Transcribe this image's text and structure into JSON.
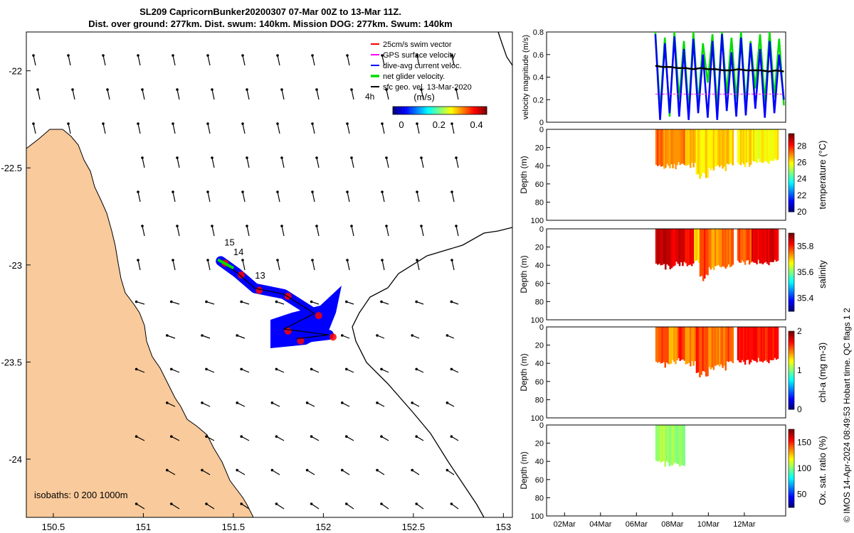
{
  "title": {
    "line1": "SL209 CapricornBunker20200307 07-Mar 00Z to 13-Mar 11Z.",
    "line2": "Dist. over ground: 277km. Dist. swum: 140km. Mission DOG: 277km. Swum: 140km"
  },
  "credit": "© IMOS 14-Apr-2024 08:49:53 Hobart time. QC flags 1  2",
  "colors": {
    "land": "#f9ca9c",
    "swim_vector": "#ff0000",
    "gps_velocity": "#ff00ff",
    "dive_avg_current": "#0000ff",
    "net_glider": "#00dd00",
    "sfc_geo_vel": "#000000"
  },
  "chart_data": [
    {
      "type": "map",
      "xlim": [
        150.35,
        153.05
      ],
      "ylim": [
        -24.3,
        -21.8
      ],
      "xticks": [
        "150.5",
        "151",
        "151.5",
        "152",
        "152.5",
        "153"
      ],
      "yticks": [
        "-22",
        "-22.5",
        "-23",
        "-23.5",
        "-24"
      ],
      "legend": {
        "placement": "top-right",
        "items": [
          {
            "label": "25cm/s swim vector",
            "color": "#ff0000"
          },
          {
            "label": "GPS surface velocity",
            "color": "#ff00ff"
          },
          {
            "label": "dive-avg current veloc.",
            "color": "#0000ff"
          },
          {
            "label": "net glider velocity.",
            "color": "#00dd00"
          },
          {
            "label": "sfc geo. vel. 13-Mar-2020",
            "color": "#000000"
          }
        ]
      },
      "colorbar": {
        "label": "(m/s)",
        "ticks": [
          "0",
          "0.2",
          "0.4"
        ],
        "range": [
          0,
          0.5
        ],
        "colormap": "jet"
      },
      "interval_label": "4h",
      "isobaths_label": "isobaths: 0   200  1000m",
      "day_labels": [
        {
          "text": "15",
          "lon": 151.45,
          "lat": -22.9
        },
        {
          "text": "14",
          "lon": 151.5,
          "lat": -22.95
        },
        {
          "text": "13",
          "lon": 151.62,
          "lat": -23.07
        }
      ],
      "glider_track": [
        {
          "lon": 151.43,
          "lat": -22.98
        },
        {
          "lon": 151.52,
          "lat": -23.04
        },
        {
          "lon": 151.62,
          "lat": -23.12
        },
        {
          "lon": 151.78,
          "lat": -23.15
        },
        {
          "lon": 151.95,
          "lat": -23.25
        },
        {
          "lon": 151.78,
          "lat": -23.33
        },
        {
          "lon": 152.03,
          "lat": -23.36
        },
        {
          "lon": 151.85,
          "lat": -23.38
        }
      ]
    },
    {
      "type": "line",
      "ylabel": "velocity magnitude (m/s)",
      "ylim": [
        0,
        0.8
      ],
      "yticks": [
        "0",
        "0.2",
        "0.4",
        "0.6",
        "0.8"
      ],
      "xlim": [
        1,
        14.3
      ],
      "series": [
        {
          "color": "#00dd00",
          "values": [
            0.8,
            0.1,
            0.75,
            0.05,
            0.8,
            0.2,
            0.72,
            0.1,
            0.8,
            0.15,
            0.7,
            0.35,
            0.78,
            0.12,
            0.8,
            0.25,
            0.75,
            0.2,
            0.8,
            0.15,
            0.72,
            0.3,
            0.78,
            0.18,
            0.8,
            0.22,
            0.74,
            0.15
          ]
        },
        {
          "color": "#0000ff",
          "values": [
            0.78,
            0.02,
            0.7,
            0.08,
            0.76,
            0.05,
            0.65,
            0.02,
            0.74,
            0.08,
            0.6,
            0.04,
            0.72,
            0.02,
            0.78,
            0.1,
            0.62,
            0.05,
            0.75,
            0.06,
            0.7,
            0.12,
            0.65,
            0.04,
            0.72,
            0.08,
            0.6,
            0.2
          ]
        },
        {
          "color": "#000000",
          "values": [
            0.5,
            0.49,
            0.49,
            0.48,
            0.48,
            0.47,
            0.48,
            0.47,
            0.47,
            0.46,
            0.46,
            0.47,
            0.46,
            0.46,
            0.46,
            0.45,
            0.46,
            0.45
          ]
        },
        {
          "color": "#ff00ff",
          "values": [
            0.25,
            0.25
          ]
        }
      ]
    },
    {
      "type": "heatmap",
      "ylabel": "Depth (m)",
      "colorbar_label": "temperature (°C)",
      "cbar_ticks": [
        "20",
        "22",
        "24",
        "26",
        "28"
      ],
      "cbar_range": [
        20,
        29.5
      ],
      "ylim": [
        0,
        100
      ],
      "yticks": [
        "0",
        "20",
        "40",
        "60",
        "80",
        "100"
      ],
      "profiles": [
        {
          "start": 7.05,
          "end": 7.5,
          "depth": 46,
          "value": 27.5
        },
        {
          "start": 7.5,
          "end": 8.3,
          "depth": 44,
          "value": 26.9
        },
        {
          "start": 8.3,
          "end": 8.7,
          "depth": 42,
          "value": 27.3
        },
        {
          "start": 8.7,
          "end": 9.3,
          "depth": 43,
          "value": 26.5
        },
        {
          "start": 9.3,
          "end": 10.0,
          "depth": 55,
          "value": 26.2
        },
        {
          "start": 10.0,
          "end": 11.0,
          "depth": 46,
          "value": 26.3
        },
        {
          "start": 11.0,
          "end": 11.4,
          "depth": 40,
          "value": 26.4
        },
        {
          "start": 11.6,
          "end": 12.4,
          "depth": 42,
          "value": 26.2
        },
        {
          "start": 12.4,
          "end": 13.9,
          "depth": 38,
          "value": 26.0
        }
      ]
    },
    {
      "type": "heatmap",
      "ylabel": "Depth (m)",
      "colorbar_label": "salinity",
      "cbar_ticks": [
        "35.4",
        "35.6",
        "35.8"
      ],
      "cbar_range": [
        35.3,
        35.9
      ],
      "ylim": [
        0,
        100
      ],
      "yticks": [
        "0",
        "20",
        "40",
        "60",
        "80",
        "100"
      ],
      "profiles": [
        {
          "start": 7.05,
          "end": 8.0,
          "depth": 45,
          "value": 35.86
        },
        {
          "start": 8.0,
          "end": 8.7,
          "depth": 42,
          "value": 35.85
        },
        {
          "start": 8.7,
          "end": 9.2,
          "depth": 44,
          "value": 35.82
        },
        {
          "start": 9.2,
          "end": 9.5,
          "depth": 38,
          "value": 35.7
        },
        {
          "start": 9.5,
          "end": 10.0,
          "depth": 58,
          "value": 35.8
        },
        {
          "start": 10.0,
          "end": 10.6,
          "depth": 46,
          "value": 35.74
        },
        {
          "start": 10.6,
          "end": 11.4,
          "depth": 44,
          "value": 35.76
        },
        {
          "start": 11.6,
          "end": 12.4,
          "depth": 40,
          "value": 35.78
        },
        {
          "start": 12.4,
          "end": 13.9,
          "depth": 40,
          "value": 35.84
        }
      ]
    },
    {
      "type": "heatmap",
      "ylabel": "Depth (m)",
      "colorbar_label": "chl-a (mg m-3)",
      "cbar_ticks": [
        "0",
        "1",
        "2"
      ],
      "cbar_range": [
        0,
        2
      ],
      "ylim": [
        0,
        100
      ],
      "yticks": [
        "0",
        "20",
        "40",
        "60",
        "80",
        "100"
      ],
      "profiles": [
        {
          "start": 7.05,
          "end": 7.8,
          "depth": 45,
          "value": 1.6
        },
        {
          "start": 7.8,
          "end": 8.3,
          "depth": 42,
          "value": 1.4
        },
        {
          "start": 8.3,
          "end": 8.7,
          "depth": 40,
          "value": 1.7
        },
        {
          "start": 8.7,
          "end": 9.3,
          "depth": 44,
          "value": 1.5
        },
        {
          "start": 9.3,
          "end": 10.0,
          "depth": 56,
          "value": 1.65
        },
        {
          "start": 10.0,
          "end": 11.0,
          "depth": 48,
          "value": 1.5
        },
        {
          "start": 11.0,
          "end": 11.4,
          "depth": 40,
          "value": 1.6
        },
        {
          "start": 11.6,
          "end": 12.4,
          "depth": 42,
          "value": 1.75
        },
        {
          "start": 12.4,
          "end": 13.9,
          "depth": 40,
          "value": 1.7
        }
      ]
    },
    {
      "type": "heatmap",
      "ylabel": "Depth (m)",
      "colorbar_label": "Ox. sat. ratio (%)",
      "cbar_ticks": [
        "50",
        "100",
        "150"
      ],
      "cbar_range": [
        25,
        175
      ],
      "ylim": [
        0,
        100
      ],
      "yticks": [
        "0",
        "20",
        "40",
        "60",
        "80",
        "100"
      ],
      "xticks": [
        "02Mar",
        "04Mar",
        "06Mar",
        "08Mar",
        "10Mar",
        "12Mar"
      ],
      "profiles": [
        {
          "start": 7.05,
          "end": 8.7,
          "depth": 46,
          "value": 105
        }
      ]
    }
  ]
}
